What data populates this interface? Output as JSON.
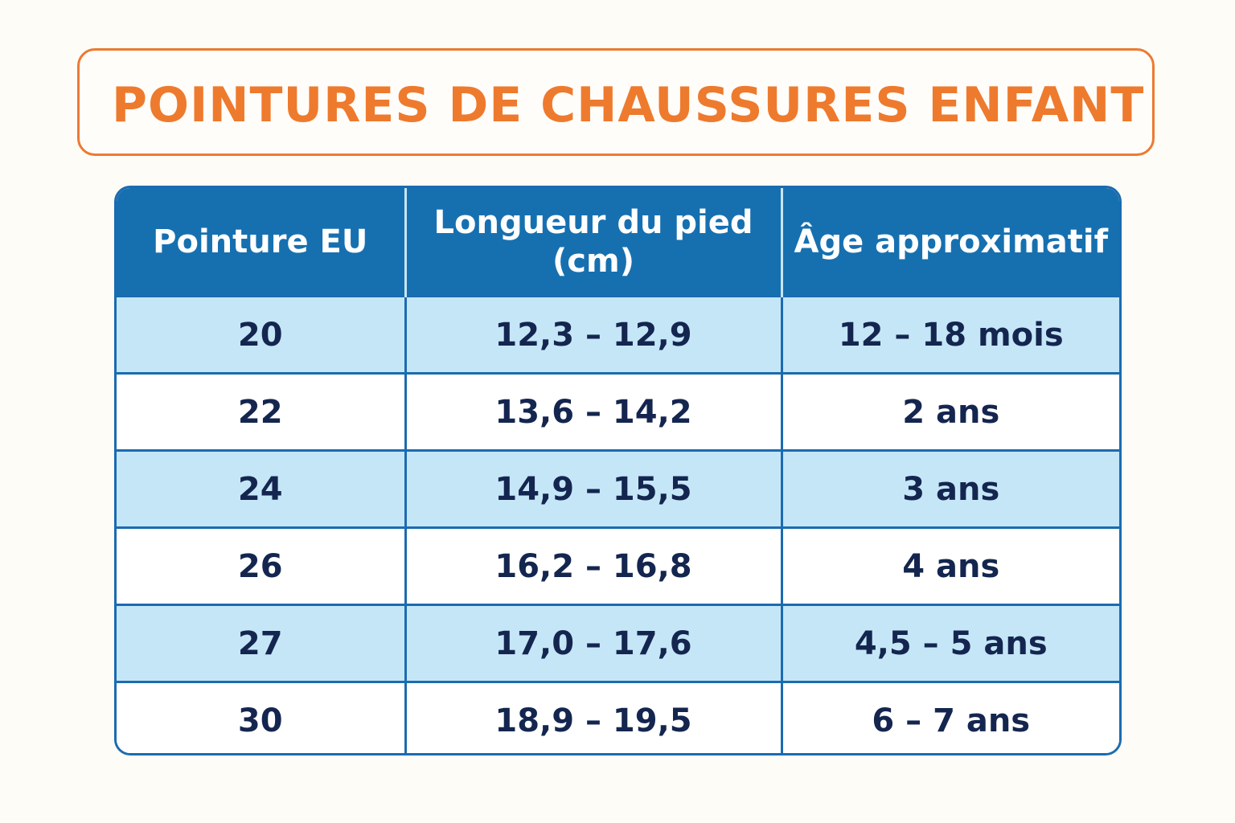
{
  "title": "POINTURES DE CHAUSSURES ENFANT",
  "colors": {
    "title": "#ee7a2e",
    "header_bg": "#1670b0",
    "row_shaded": "#c5e6f7",
    "row_plain": "#ffffff",
    "cell_text": "#14264f"
  },
  "table": {
    "headers": [
      "Pointure EU",
      "Longueur du pied (cm)",
      "Âge approximatif"
    ],
    "rows": [
      [
        "20",
        "12,3 – 12,9",
        "12 – 18 mois"
      ],
      [
        "22",
        "13,6 – 14,2",
        "2 ans"
      ],
      [
        "24",
        "14,9 – 15,5",
        "3 ans"
      ],
      [
        "26",
        "16,2 – 16,8",
        "4 ans"
      ],
      [
        "27",
        "17,0 – 17,6",
        "4,5 – 5 ans"
      ],
      [
        "30",
        "18,9 – 19,5",
        "6 – 7 ans"
      ]
    ]
  }
}
